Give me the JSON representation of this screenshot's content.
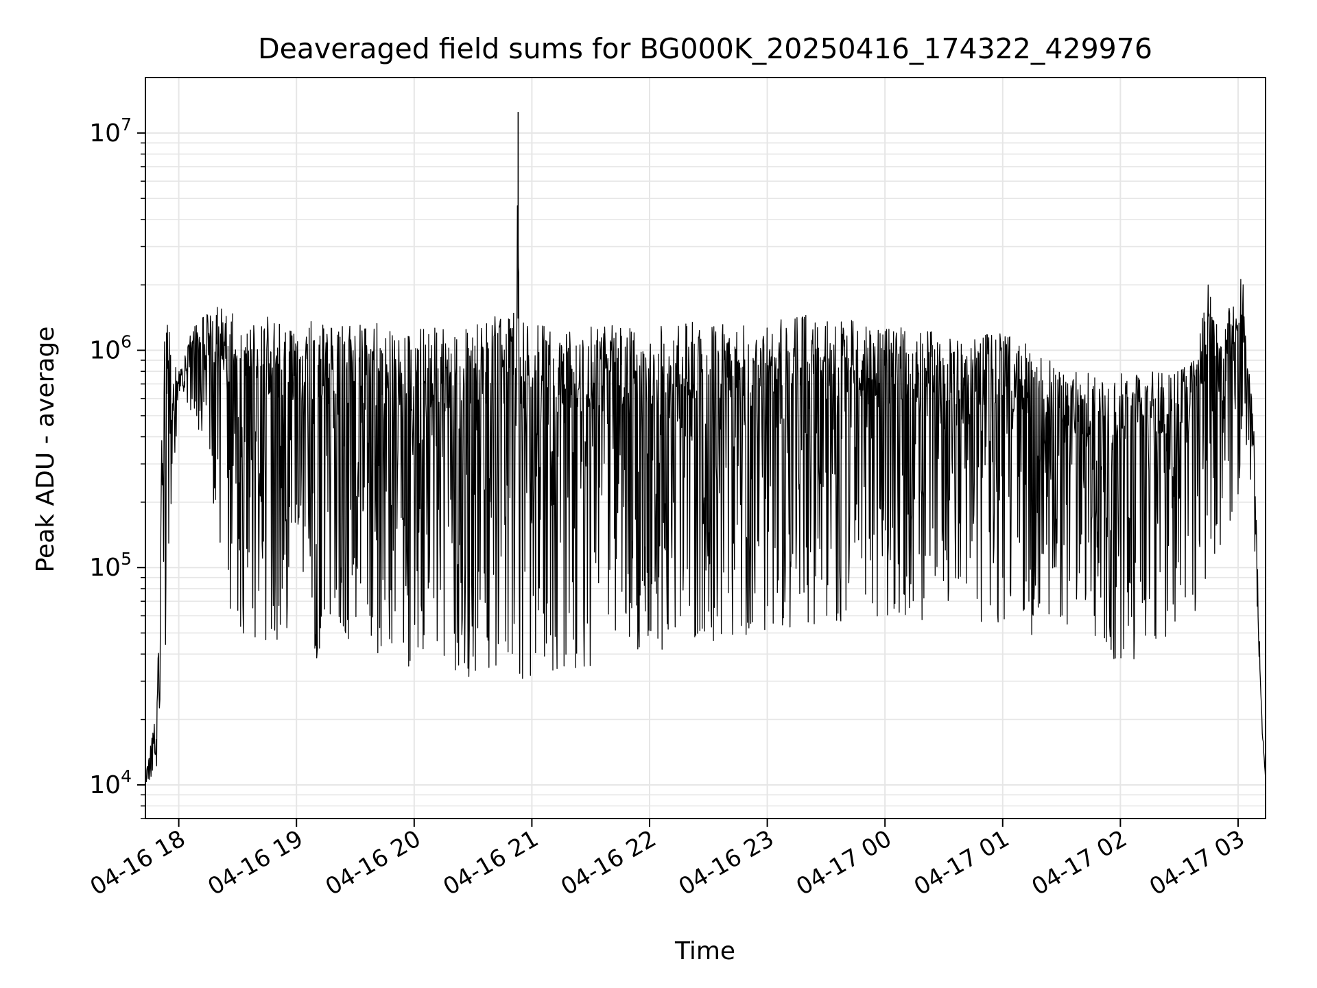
{
  "chart_data": {
    "type": "line",
    "title": "Deaveraged field sums for BG000K_20250416_174322_429976",
    "xlabel": "Time",
    "ylabel": "Peak ADU - average",
    "yscale": "log",
    "grid": true,
    "line_color": "#000000",
    "grid_color": "#e6e6e6",
    "xlim": [
      "2025-04-16 17:43",
      "2025-04-17 03:14"
    ],
    "ylim": [
      7000,
      18000000
    ],
    "x_ticks": [
      {
        "t": "2025-04-16 18:00",
        "label": "04-16 18"
      },
      {
        "t": "2025-04-16 19:00",
        "label": "04-16 19"
      },
      {
        "t": "2025-04-16 20:00",
        "label": "04-16 20"
      },
      {
        "t": "2025-04-16 21:00",
        "label": "04-16 21"
      },
      {
        "t": "2025-04-16 22:00",
        "label": "04-16 22"
      },
      {
        "t": "2025-04-16 23:00",
        "label": "04-16 23"
      },
      {
        "t": "2025-04-17 00:00",
        "label": "04-17 00"
      },
      {
        "t": "2025-04-17 01:00",
        "label": "04-17 01"
      },
      {
        "t": "2025-04-17 02:00",
        "label": "04-17 02"
      },
      {
        "t": "2025-04-17 03:00",
        "label": "04-17 03"
      }
    ],
    "y_ticks": [
      {
        "value": 10000,
        "base": "10",
        "exp": "4"
      },
      {
        "value": 100000,
        "base": "10",
        "exp": "5"
      },
      {
        "value": 1000000,
        "base": "10",
        "exp": "6"
      },
      {
        "value": 10000000,
        "base": "10",
        "exp": "7"
      }
    ],
    "series": [
      {
        "upper_envelope": {
          "x": [
            "2025-04-16 17:43",
            "2025-04-16 17:45",
            "2025-04-16 17:48",
            "2025-04-16 17:49",
            "2025-04-16 17:50",
            "2025-04-16 17:51",
            "2025-04-16 17:53",
            "2025-04-16 17:55",
            "2025-04-16 18:00",
            "2025-04-16 18:05",
            "2025-04-16 18:15",
            "2025-04-16 18:30",
            "2025-04-16 19:00",
            "2025-04-16 19:30",
            "2025-04-16 20:00",
            "2025-04-16 20:30",
            "2025-04-16 20:52",
            "2025-04-16 20:53",
            "2025-04-16 20:54",
            "2025-04-16 21:00",
            "2025-04-16 21:30",
            "2025-04-16 22:00",
            "2025-04-16 22:30",
            "2025-04-16 23:00",
            "2025-04-16 23:30",
            "2025-04-17 00:00",
            "2025-04-17 00:30",
            "2025-04-17 01:00",
            "2025-04-17 01:20",
            "2025-04-17 01:30",
            "2025-04-17 02:00",
            "2025-04-17 02:30",
            "2025-04-17 02:40",
            "2025-04-17 02:45",
            "2025-04-17 02:50",
            "2025-04-17 02:55",
            "2025-04-17 03:00",
            "2025-04-17 03:02",
            "2025-04-17 03:05",
            "2025-04-17 03:08",
            "2025-04-17 03:10",
            "2025-04-17 03:12",
            "2025-04-17 03:14"
          ],
          "y": [
            11000,
            15000,
            20000,
            28000,
            60000,
            300000,
            1500000,
            1300000,
            800000,
            1200000,
            1650000,
            1500000,
            1400000,
            1350000,
            1300000,
            1400000,
            1500000,
            12500000,
            1400000,
            1300000,
            1300000,
            1300000,
            1400000,
            1400000,
            1500000,
            1300000,
            1200000,
            1200000,
            1000000,
            800000,
            800000,
            800000,
            1100000,
            2200000,
            1200000,
            2200000,
            1500000,
            2500000,
            900000,
            500000,
            100000,
            18000,
            11000
          ]
        },
        "lower_envelope": {
          "x": [
            "2025-04-16 17:43",
            "2025-04-16 17:50",
            "2025-04-16 18:00",
            "2025-04-16 18:12",
            "2025-04-16 18:20",
            "2025-04-16 18:30",
            "2025-04-16 19:00",
            "2025-04-16 19:30",
            "2025-04-16 20:00",
            "2025-04-16 20:30",
            "2025-04-16 21:00",
            "2025-04-16 21:30",
            "2025-04-16 22:00",
            "2025-04-16 22:30",
            "2025-04-16 23:00",
            "2025-04-16 23:30",
            "2025-04-17 00:00",
            "2025-04-17 00:30",
            "2025-04-17 01:00",
            "2025-04-17 01:30",
            "2025-04-17 02:00",
            "2025-04-17 02:30",
            "2025-04-17 02:50",
            "2025-04-17 03:00",
            "2025-04-17 03:05",
            "2025-04-17 03:10",
            "2025-04-17 03:14"
          ],
          "y": [
            10000,
            12000,
            600000,
            400000,
            100000,
            50000,
            40000,
            35000,
            35000,
            30000,
            30000,
            35000,
            40000,
            45000,
            50000,
            55000,
            60000,
            55000,
            50000,
            45000,
            35000,
            50000,
            70000,
            200000,
            400000,
            50000,
            10000
          ]
        }
      }
    ]
  }
}
